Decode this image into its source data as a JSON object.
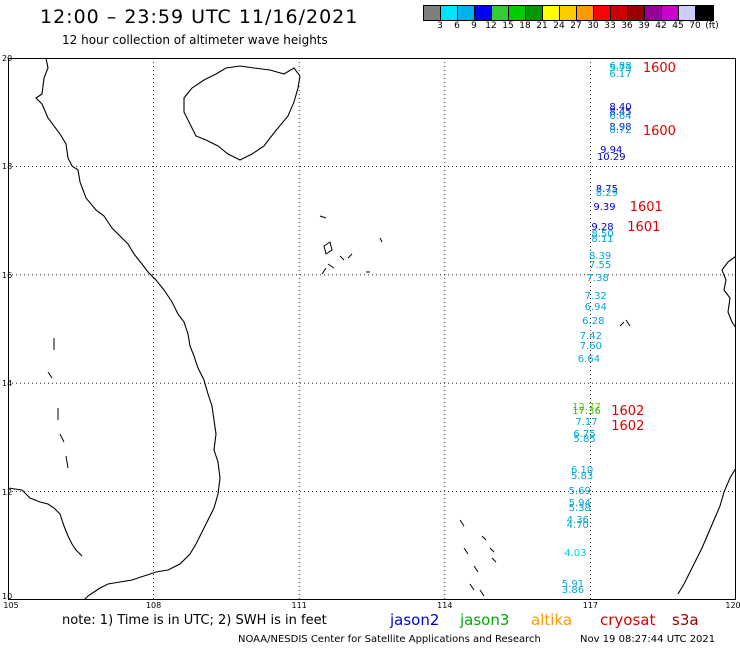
{
  "header": {
    "title": "12:00 – 23:59 UTC 11/16/2021",
    "subtitle": "12 hour collection of altimeter wave heights"
  },
  "colorbar": {
    "colors": [
      "#7f7f7f",
      "#00e5ff",
      "#00b0f0",
      "#0000ff",
      "#33cc33",
      "#00cc00",
      "#009900",
      "#ffff00",
      "#ffcc00",
      "#ff9900",
      "#ff0000",
      "#cc0000",
      "#990000",
      "#990099",
      "#cc00cc",
      "#ccccff",
      "#000000"
    ],
    "labels": [
      "3",
      "6",
      "9",
      "12",
      "15",
      "18",
      "21",
      "24",
      "27",
      "30",
      "33",
      "36",
      "39",
      "42",
      "45",
      "70",
      "(ft)"
    ]
  },
  "axes": {
    "lat_labels": [
      "20",
      "18",
      "16",
      "14",
      "12",
      "10"
    ],
    "lon_labels": [
      "105",
      "108",
      "111",
      "114",
      "117",
      "120"
    ]
  },
  "observations": [
    {
      "value": "6.88",
      "color": "#00a8d8",
      "lat": 19.84,
      "lon": 117.62
    },
    {
      "value": "5.73",
      "color": "#00a8d8",
      "lat": 19.8,
      "lon": 117.62
    },
    {
      "value": "6.17",
      "color": "#00a8d8",
      "lat": 19.68,
      "lon": 117.62
    },
    {
      "value": "8.40",
      "color": "#0000cc",
      "lat": 19.08,
      "lon": 117.62
    },
    {
      "value": "8.45",
      "color": "#0000cc",
      "lat": 18.99,
      "lon": 117.62
    },
    {
      "value": "6.64",
      "color": "#00a8d8",
      "lat": 18.91,
      "lon": 117.62
    },
    {
      "value": "8.98",
      "color": "#0000cc",
      "lat": 18.71,
      "lon": 117.62
    },
    {
      "value": "8.72",
      "color": "#00a8d8",
      "lat": 18.65,
      "lon": 117.62
    },
    {
      "value": "9.94",
      "color": "#0000cc",
      "lat": 18.28,
      "lon": 117.43
    },
    {
      "value": "10.29",
      "color": "#0000cc",
      "lat": 18.16,
      "lon": 117.43
    },
    {
      "value": "8.75",
      "color": "#0000cc",
      "lat": 17.56,
      "lon": 117.34
    },
    {
      "value": "8.29",
      "color": "#00a8d8",
      "lat": 17.5,
      "lon": 117.34
    },
    {
      "value": "9.39",
      "color": "#0000cc",
      "lat": 17.24,
      "lon": 117.29
    },
    {
      "value": "9.28",
      "color": "#0000cc",
      "lat": 16.86,
      "lon": 117.25
    },
    {
      "value": "8.50",
      "color": "#00a8d8",
      "lat": 16.73,
      "lon": 117.25
    },
    {
      "value": "8.11",
      "color": "#00a8d8",
      "lat": 16.64,
      "lon": 117.25
    },
    {
      "value": "8.39",
      "color": "#00a8d8",
      "lat": 16.33,
      "lon": 117.2
    },
    {
      "value": "7.55",
      "color": "#00a8d8",
      "lat": 16.16,
      "lon": 117.2
    },
    {
      "value": "7.38",
      "color": "#00a8d8",
      "lat": 15.92,
      "lon": 117.15
    },
    {
      "value": "7.32",
      "color": "#00a8d8",
      "lat": 15.59,
      "lon": 117.11
    },
    {
      "value": "6.94",
      "color": "#00a8d8",
      "lat": 15.38,
      "lon": 117.11
    },
    {
      "value": "6.28",
      "color": "#00a8d8",
      "lat": 15.13,
      "lon": 117.06
    },
    {
      "value": "7.42",
      "color": "#00a8d8",
      "lat": 14.86,
      "lon": 117.01
    },
    {
      "value": "7.60",
      "color": "#00a8d8",
      "lat": 14.67,
      "lon": 117.01
    },
    {
      "value": "6.64",
      "color": "#00a8d8",
      "lat": 14.43,
      "lon": 116.97
    },
    {
      "value": "12.77",
      "color": "#66cc00",
      "lat": 13.54,
      "lon": 116.92
    },
    {
      "value": "17.36",
      "color": "#33bb00",
      "lat": 13.46,
      "lon": 116.92
    },
    {
      "value": "7.17",
      "color": "#00a8d8",
      "lat": 13.26,
      "lon": 116.92
    },
    {
      "value": "6.75",
      "color": "#00a8d8",
      "lat": 13.05,
      "lon": 116.88
    },
    {
      "value": "5.85",
      "color": "#00a8d8",
      "lat": 12.95,
      "lon": 116.88
    },
    {
      "value": "6.10",
      "color": "#00a8d8",
      "lat": 12.38,
      "lon": 116.83
    },
    {
      "value": "5.83",
      "color": "#00a8d8",
      "lat": 12.27,
      "lon": 116.83
    },
    {
      "value": "5.69",
      "color": "#00a8d8",
      "lat": 11.99,
      "lon": 116.78
    },
    {
      "value": "5.94",
      "color": "#00a8d8",
      "lat": 11.77,
      "lon": 116.78
    },
    {
      "value": "5.38",
      "color": "#00a8d8",
      "lat": 11.67,
      "lon": 116.78
    },
    {
      "value": "4.36",
      "color": "#00a8d8",
      "lat": 11.46,
      "lon": 116.74
    },
    {
      "value": "4.70",
      "color": "#00a8d8",
      "lat": 11.36,
      "lon": 116.74
    },
    {
      "value": "4.03",
      "color": "#00d0e0",
      "lat": 10.85,
      "lon": 116.69
    },
    {
      "value": "5.91",
      "color": "#00a8d8",
      "lat": 10.28,
      "lon": 116.64
    },
    {
      "value": "3.86",
      "color": "#00a8d8",
      "lat": 10.16,
      "lon": 116.64
    }
  ],
  "time_labels": [
    {
      "text": "1600",
      "lat": 19.8,
      "lon": 118.08
    },
    {
      "text": "1600",
      "lat": 18.63,
      "lon": 118.08
    },
    {
      "text": "1601",
      "lat": 17.24,
      "lon": 117.81
    },
    {
      "text": "1601",
      "lat": 16.86,
      "lon": 117.76
    },
    {
      "text": "1602",
      "lat": 13.46,
      "lon": 117.43
    },
    {
      "text": "1602",
      "lat": 13.2,
      "lon": 117.43
    }
  ],
  "note": "note:  1) Time is in UTC;  2) SWH is in feet",
  "satellites": [
    {
      "name": "jason2",
      "color": "#0000dd"
    },
    {
      "name": "jason3",
      "color": "#00aa00"
    },
    {
      "name": "altika",
      "color": "#ff9900"
    },
    {
      "name": "cryosat",
      "color": "#dd0000"
    },
    {
      "name": "s3a",
      "color": "#990000"
    }
  ],
  "footer": {
    "credit": "NOAA/NESDIS Center for Satellite Applications and Research",
    "timestamp": "Nov 19 08:27:44 UTC 2021"
  }
}
